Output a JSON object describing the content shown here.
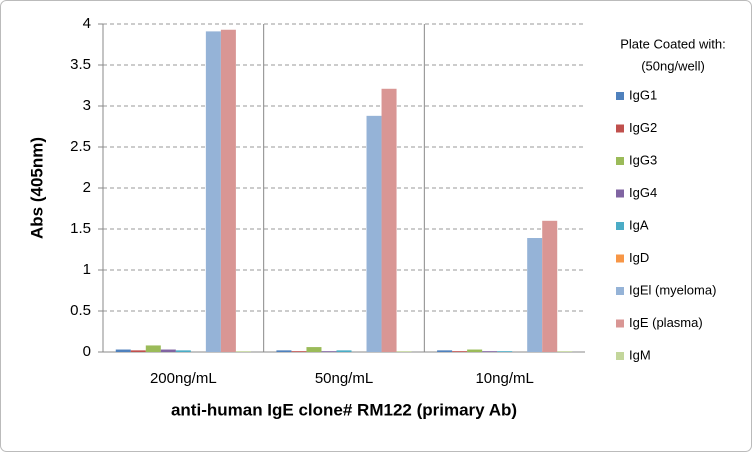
{
  "chart_data": {
    "type": "bar",
    "x_label": "anti-human IgE clone# RM122 (primary Ab)",
    "y_label": "Abs (405nm)",
    "legend_title": [
      "Plate Coated with:",
      "(50ng/well)"
    ],
    "legend_position": "right",
    "categories": [
      "200ng/mL",
      "50ng/mL",
      "10ng/mL"
    ],
    "series": [
      {
        "name": "IgG1",
        "color": "#4f81bd",
        "values": [
          0.03,
          0.02,
          0.02
        ]
      },
      {
        "name": "IgG2",
        "color": "#c0504d",
        "values": [
          0.02,
          0.01,
          0.01
        ]
      },
      {
        "name": "IgG3",
        "color": "#9bbb59",
        "values": [
          0.08,
          0.06,
          0.03
        ]
      },
      {
        "name": "IgG4",
        "color": "#8064a2",
        "values": [
          0.03,
          0.01,
          0.01
        ]
      },
      {
        "name": "IgA",
        "color": "#4bacc6",
        "values": [
          0.02,
          0.02,
          0.01
        ]
      },
      {
        "name": "IgD",
        "color": "#f79646",
        "values": [
          0,
          0,
          0
        ]
      },
      {
        "name": "IgEl (myeloma)",
        "color": "#95b3d7",
        "values": [
          3.91,
          2.88,
          1.39
        ]
      },
      {
        "name": "IgE (plasma)",
        "color": "#d99694",
        "values": [
          3.93,
          3.21,
          1.6
        ]
      },
      {
        "name": "IgM",
        "color": "#c3d69b",
        "values": [
          0.01,
          0.01,
          0.01
        ]
      }
    ],
    "ylim": [
      0,
      4
    ],
    "yticks": [
      0,
      0.5,
      1,
      1.5,
      2,
      2.5,
      3,
      3.5,
      4
    ],
    "grid": true
  }
}
